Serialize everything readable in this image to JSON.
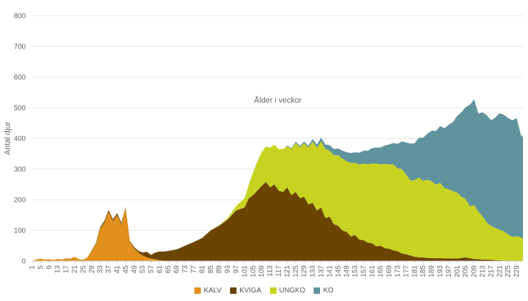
{
  "chart_data": {
    "type": "area",
    "stacked": true,
    "xlabel": "Ålder i veckor",
    "ylabel": "Antal djur",
    "ylim": [
      0,
      800
    ],
    "yticks": [
      0,
      100,
      200,
      300,
      400,
      500,
      600,
      700,
      800
    ],
    "x_first": 1,
    "x_last": 232,
    "xtick_step": 4,
    "grid": true,
    "legend_position": "bottom",
    "series": [
      {
        "name": "KALV",
        "color": "#e0901b",
        "points": [
          [
            1,
            0
          ],
          [
            3,
            5
          ],
          [
            5,
            8
          ],
          [
            7,
            5
          ],
          [
            9,
            6
          ],
          [
            11,
            4
          ],
          [
            13,
            7
          ],
          [
            15,
            5
          ],
          [
            17,
            9
          ],
          [
            19,
            8
          ],
          [
            21,
            14
          ],
          [
            23,
            6
          ],
          [
            25,
            4
          ],
          [
            27,
            12
          ],
          [
            29,
            32
          ],
          [
            31,
            55
          ],
          [
            33,
            105
          ],
          [
            35,
            125
          ],
          [
            37,
            162
          ],
          [
            39,
            130
          ],
          [
            41,
            150
          ],
          [
            43,
            120
          ],
          [
            45,
            172
          ],
          [
            47,
            62
          ],
          [
            49,
            42
          ],
          [
            51,
            28
          ],
          [
            53,
            18
          ],
          [
            55,
            12
          ],
          [
            57,
            8
          ],
          [
            59,
            6
          ],
          [
            61,
            3
          ],
          [
            63,
            1
          ],
          [
            65,
            0
          ],
          [
            232,
            0
          ]
        ]
      },
      {
        "name": "KVIGA",
        "color": "#6b4400",
        "points": [
          [
            1,
            0
          ],
          [
            21,
            0
          ],
          [
            27,
            0
          ],
          [
            29,
            2
          ],
          [
            31,
            3
          ],
          [
            33,
            5
          ],
          [
            35,
            6
          ],
          [
            37,
            5
          ],
          [
            39,
            6
          ],
          [
            41,
            6
          ],
          [
            43,
            5
          ],
          [
            45,
            3
          ],
          [
            47,
            3
          ],
          [
            49,
            4
          ],
          [
            51,
            5
          ],
          [
            53,
            10
          ],
          [
            55,
            18
          ],
          [
            57,
            12
          ],
          [
            59,
            22
          ],
          [
            61,
            28
          ],
          [
            63,
            30
          ],
          [
            65,
            33
          ],
          [
            69,
            38
          ],
          [
            73,
            50
          ],
          [
            77,
            62
          ],
          [
            81,
            75
          ],
          [
            85,
            100
          ],
          [
            89,
            115
          ],
          [
            93,
            135
          ],
          [
            97,
            165
          ],
          [
            101,
            175
          ],
          [
            103,
            205
          ],
          [
            105,
            215
          ],
          [
            107,
            230
          ],
          [
            109,
            245
          ],
          [
            111,
            258
          ],
          [
            113,
            240
          ],
          [
            115,
            250
          ],
          [
            117,
            230
          ],
          [
            119,
            225
          ],
          [
            121,
            240
          ],
          [
            123,
            215
          ],
          [
            125,
            225
          ],
          [
            127,
            205
          ],
          [
            129,
            210
          ],
          [
            131,
            185
          ],
          [
            133,
            190
          ],
          [
            135,
            165
          ],
          [
            137,
            175
          ],
          [
            139,
            140
          ],
          [
            141,
            145
          ],
          [
            143,
            120
          ],
          [
            145,
            115
          ],
          [
            147,
            100
          ],
          [
            149,
            95
          ],
          [
            151,
            80
          ],
          [
            153,
            85
          ],
          [
            155,
            70
          ],
          [
            157,
            68
          ],
          [
            159,
            60
          ],
          [
            161,
            58
          ],
          [
            163,
            48
          ],
          [
            165,
            50
          ],
          [
            167,
            42
          ],
          [
            169,
            40
          ],
          [
            171,
            35
          ],
          [
            173,
            32
          ],
          [
            175,
            25
          ],
          [
            177,
            22
          ],
          [
            179,
            18
          ],
          [
            181,
            14
          ],
          [
            183,
            12
          ],
          [
            185,
            12
          ],
          [
            187,
            10
          ],
          [
            189,
            10
          ],
          [
            191,
            9
          ],
          [
            193,
            10
          ],
          [
            195,
            8
          ],
          [
            197,
            9
          ],
          [
            199,
            8
          ],
          [
            201,
            8
          ],
          [
            203,
            10
          ],
          [
            205,
            12
          ],
          [
            207,
            9
          ],
          [
            209,
            7
          ],
          [
            211,
            6
          ],
          [
            213,
            5
          ],
          [
            215,
            5
          ],
          [
            217,
            4
          ],
          [
            219,
            3
          ],
          [
            221,
            2
          ],
          [
            223,
            2
          ],
          [
            225,
            1
          ],
          [
            227,
            1
          ],
          [
            229,
            1
          ],
          [
            232,
            0
          ]
        ]
      },
      {
        "name": "UNGKO",
        "color": "#c8d321",
        "points": [
          [
            1,
            0
          ],
          [
            65,
            0
          ],
          [
            85,
            0
          ],
          [
            89,
            2
          ],
          [
            93,
            5
          ],
          [
            97,
            15
          ],
          [
            101,
            30
          ],
          [
            103,
            45
          ],
          [
            105,
            75
          ],
          [
            107,
            95
          ],
          [
            109,
            110
          ],
          [
            111,
            115
          ],
          [
            113,
            130
          ],
          [
            115,
            130
          ],
          [
            117,
            135
          ],
          [
            119,
            140
          ],
          [
            121,
            135
          ],
          [
            123,
            150
          ],
          [
            125,
            160
          ],
          [
            127,
            165
          ],
          [
            129,
            175
          ],
          [
            131,
            185
          ],
          [
            133,
            200
          ],
          [
            135,
            205
          ],
          [
            137,
            215
          ],
          [
            139,
            225
          ],
          [
            141,
            215
          ],
          [
            143,
            225
          ],
          [
            145,
            230
          ],
          [
            147,
            235
          ],
          [
            149,
            230
          ],
          [
            151,
            240
          ],
          [
            153,
            235
          ],
          [
            155,
            245
          ],
          [
            157,
            250
          ],
          [
            159,
            255
          ],
          [
            161,
            260
          ],
          [
            163,
            270
          ],
          [
            165,
            265
          ],
          [
            167,
            275
          ],
          [
            169,
            275
          ],
          [
            171,
            280
          ],
          [
            173,
            270
          ],
          [
            175,
            275
          ],
          [
            177,
            260
          ],
          [
            179,
            245
          ],
          [
            181,
            250
          ],
          [
            183,
            260
          ],
          [
            185,
            250
          ],
          [
            187,
            255
          ],
          [
            189,
            250
          ],
          [
            191,
            240
          ],
          [
            193,
            245
          ],
          [
            195,
            230
          ],
          [
            197,
            225
          ],
          [
            199,
            220
          ],
          [
            201,
            215
          ],
          [
            203,
            200
          ],
          [
            205,
            190
          ],
          [
            207,
            170
          ],
          [
            209,
            175
          ],
          [
            211,
            155
          ],
          [
            213,
            140
          ],
          [
            215,
            120
          ],
          [
            217,
            110
          ],
          [
            219,
            105
          ],
          [
            221,
            100
          ],
          [
            223,
            95
          ],
          [
            225,
            85
          ],
          [
            227,
            78
          ],
          [
            229,
            80
          ],
          [
            231,
            76
          ],
          [
            232,
            74
          ]
        ]
      },
      {
        "name": "KO",
        "color": "#5f939e",
        "points": [
          [
            1,
            0
          ],
          [
            120,
            0
          ],
          [
            121,
            2
          ],
          [
            123,
            3
          ],
          [
            125,
            4
          ],
          [
            127,
            5
          ],
          [
            129,
            5
          ],
          [
            131,
            6
          ],
          [
            133,
            8
          ],
          [
            135,
            10
          ],
          [
            137,
            12
          ],
          [
            139,
            15
          ],
          [
            141,
            18
          ],
          [
            143,
            20
          ],
          [
            145,
            22
          ],
          [
            147,
            25
          ],
          [
            149,
            30
          ],
          [
            151,
            32
          ],
          [
            153,
            35
          ],
          [
            155,
            38
          ],
          [
            157,
            42
          ],
          [
            159,
            45
          ],
          [
            161,
            50
          ],
          [
            163,
            52
          ],
          [
            165,
            55
          ],
          [
            167,
            60
          ],
          [
            169,
            65
          ],
          [
            171,
            70
          ],
          [
            173,
            80
          ],
          [
            175,
            90
          ],
          [
            177,
            105
          ],
          [
            179,
            120
          ],
          [
            181,
            120
          ],
          [
            183,
            130
          ],
          [
            185,
            140
          ],
          [
            187,
            150
          ],
          [
            189,
            165
          ],
          [
            191,
            175
          ],
          [
            193,
            185
          ],
          [
            195,
            195
          ],
          [
            197,
            210
          ],
          [
            199,
            225
          ],
          [
            201,
            250
          ],
          [
            203,
            275
          ],
          [
            205,
            300
          ],
          [
            207,
            330
          ],
          [
            209,
            345
          ],
          [
            211,
            320
          ],
          [
            213,
            340
          ],
          [
            215,
            350
          ],
          [
            217,
            345
          ],
          [
            219,
            360
          ],
          [
            221,
            380
          ],
          [
            223,
            380
          ],
          [
            225,
            380
          ],
          [
            227,
            380
          ],
          [
            229,
            385
          ],
          [
            231,
            335
          ],
          [
            232,
            330
          ]
        ]
      }
    ]
  },
  "legend": {
    "kalv": "KALV",
    "kviga": "KVIGA",
    "ungko": "UNGKO",
    "ko": "KO"
  },
  "colors": {
    "kalv": "#e0901b",
    "kviga": "#6b4400",
    "ungko": "#c8d321",
    "ko": "#5f939e",
    "grid": "#e6e6e6"
  }
}
